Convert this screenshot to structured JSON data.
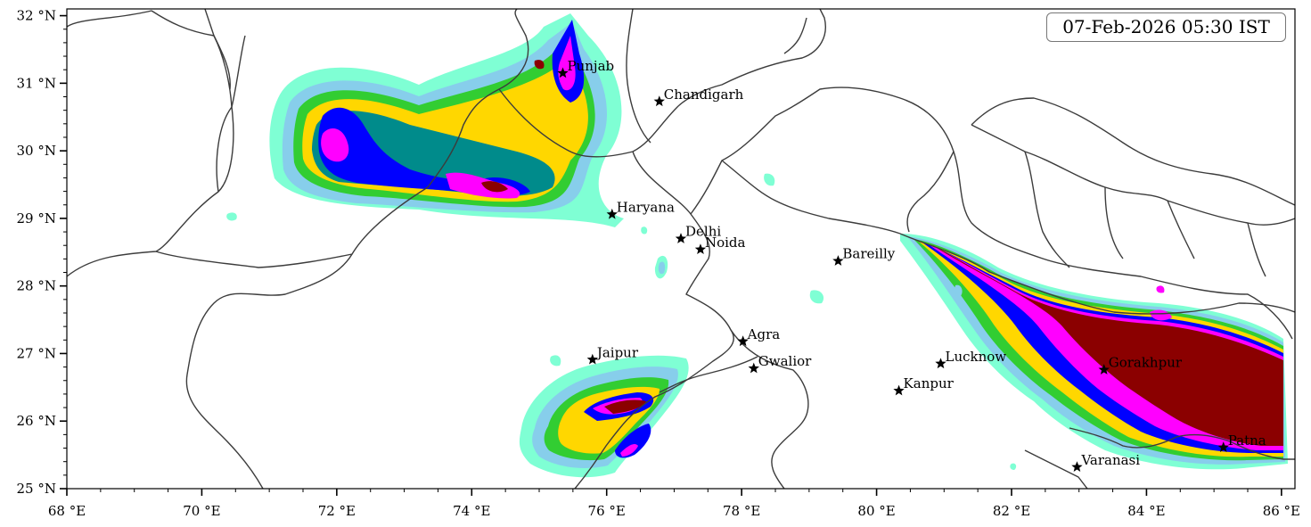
{
  "map": {
    "timestamp": "07-Feb-2026 05:30 IST",
    "lon_range": [
      68,
      86.2
    ],
    "lat_range": [
      25,
      32.1
    ],
    "x_ticks": [
      {
        "value": 68,
        "label": "68 °E"
      },
      {
        "value": 70,
        "label": "70 °E"
      },
      {
        "value": 72,
        "label": "72 °E"
      },
      {
        "value": 74,
        "label": "74 °E"
      },
      {
        "value": 76,
        "label": "76 °E"
      },
      {
        "value": 78,
        "label": "78 °E"
      },
      {
        "value": 80,
        "label": "80 °E"
      },
      {
        "value": 82,
        "label": "82 °E"
      },
      {
        "value": 84,
        "label": "84 °E"
      },
      {
        "value": 86,
        "label": "86 °E"
      }
    ],
    "y_ticks": [
      {
        "value": 25,
        "label": "25 °N"
      },
      {
        "value": 26,
        "label": "26 °N"
      },
      {
        "value": 27,
        "label": "27 °N"
      },
      {
        "value": 28,
        "label": "28 °N"
      },
      {
        "value": 29,
        "label": "29 °N"
      },
      {
        "value": 30,
        "label": "30 °N"
      },
      {
        "value": 31,
        "label": "31 °N"
      },
      {
        "value": 32,
        "label": "32 °N"
      }
    ],
    "cities": [
      {
        "name": "Punjab",
        "lon": 75.35,
        "lat": 31.15
      },
      {
        "name": "Chandigarh",
        "lon": 76.78,
        "lat": 30.73
      },
      {
        "name": "Haryana",
        "lon": 76.08,
        "lat": 29.06
      },
      {
        "name": "Delhi",
        "lon": 77.1,
        "lat": 28.7
      },
      {
        "name": "Noida",
        "lon": 77.39,
        "lat": 28.54
      },
      {
        "name": "Bareilly",
        "lon": 79.43,
        "lat": 28.37
      },
      {
        "name": "Agra",
        "lon": 78.02,
        "lat": 27.18
      },
      {
        "name": "Jaipur",
        "lon": 75.79,
        "lat": 26.91
      },
      {
        "name": "Gwalior",
        "lon": 78.18,
        "lat": 26.78
      },
      {
        "name": "Lucknow",
        "lon": 80.95,
        "lat": 26.85
      },
      {
        "name": "Kanpur",
        "lon": 80.33,
        "lat": 26.45
      },
      {
        "name": "Gorakhpur",
        "lon": 83.37,
        "lat": 26.76
      },
      {
        "name": "Patna",
        "lon": 85.14,
        "lat": 25.61
      },
      {
        "name": "Varanasi",
        "lon": 82.97,
        "lat": 25.32
      }
    ],
    "colors": {
      "level1": "#7fffd4",
      "level2": "#87ceeb",
      "level3": "#32cd32",
      "level4": "#ffd700",
      "level5": "#ffa500",
      "level6": "#008b8b",
      "level7": "#0000ff",
      "level8": "#ff00ff",
      "level9": "#8b0000",
      "boundary": "#3c3c3c"
    }
  }
}
